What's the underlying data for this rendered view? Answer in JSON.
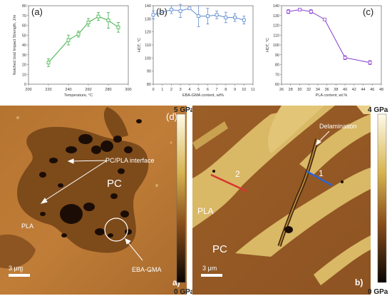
{
  "chart_data": [
    {
      "type": "line",
      "panel": "(a)",
      "xlabel": "Temperature, °C",
      "ylabel": "Notched Izod Impact Strength, J/m",
      "xlim": [
        200,
        300
      ],
      "ylim": [
        0,
        80
      ],
      "xticks": [
        "200",
        "220",
        "240",
        "260",
        "280",
        "300"
      ],
      "yticks": [
        "0",
        "10",
        "20",
        "30",
        "40",
        "50",
        "60",
        "70",
        "80"
      ],
      "color": "#3cb043",
      "x": [
        220,
        240,
        250,
        260,
        270,
        280,
        290
      ],
      "y": [
        22,
        45,
        51,
        63,
        69,
        65,
        58
      ],
      "err": [
        4,
        5,
        3,
        4,
        4,
        8,
        5
      ]
    },
    {
      "type": "line",
      "panel": "(b)",
      "xlabel": "EBA-GMA content, wt%",
      "ylabel": "HDT, °C",
      "xlim": [
        0,
        11
      ],
      "ylim": [
        80,
        140
      ],
      "xticks": [
        "0",
        "1",
        "2",
        "3",
        "4",
        "5",
        "6",
        "7",
        "8",
        "9",
        "10",
        "11"
      ],
      "yticks": [
        "80",
        "90",
        "100",
        "110",
        "120",
        "130",
        "140"
      ],
      "color": "#5b8ad0",
      "x": [
        0,
        2,
        3,
        4,
        5,
        6,
        7,
        8,
        9,
        10
      ],
      "y": [
        133,
        137,
        136,
        138,
        132,
        132,
        133,
        131,
        131,
        129
      ],
      "err": [
        3,
        3,
        5,
        1,
        8,
        6,
        3,
        4,
        3,
        3
      ]
    },
    {
      "type": "line",
      "panel": "(c)",
      "xlabel": "PLA content, wt.%",
      "ylabel": "HDT, °C",
      "xlim": [
        26,
        48
      ],
      "ylim": [
        60,
        140
      ],
      "xticks": [
        "26",
        "28",
        "30",
        "32",
        "34",
        "36",
        "38",
        "40",
        "42",
        "44",
        "46",
        "48"
      ],
      "yticks": [
        "60",
        "70",
        "80",
        "90",
        "100",
        "110",
        "120",
        "130",
        "140"
      ],
      "color": "#8a3fd1",
      "x": [
        27.5,
        30,
        32.5,
        35.5,
        40,
        45.5
      ],
      "y": [
        134,
        136,
        134,
        126,
        87,
        82
      ],
      "err": [
        2,
        1,
        2,
        1,
        2,
        2
      ]
    }
  ],
  "afm": {
    "d": {
      "panel_letter": "(d)",
      "sub_letter": "a)",
      "phase_major": "PC",
      "phase_minor": "PLA",
      "interface_label": "PC/PLA interface",
      "compatibilizer_label": "EBA-GMA",
      "scale_bar": "3 μm",
      "colorbar_max": "5 GPa",
      "colorbar_min": "0 GPa"
    },
    "b": {
      "sub_letter": "b)",
      "phase_major": "PC",
      "phase_minor": "PLA",
      "delamination_label": "Delamination",
      "line_1": "1",
      "line_2": "2",
      "scale_bar": "3 μm",
      "colorbar_max": "4 GPa",
      "colorbar_min": "0 GPa"
    }
  }
}
